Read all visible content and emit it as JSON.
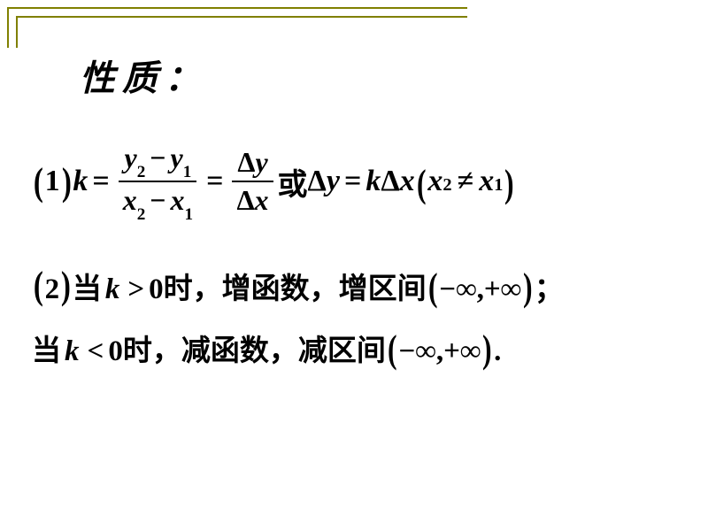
{
  "colors": {
    "border": "#808000",
    "text": "#000000",
    "background": "#ffffff"
  },
  "title": "性质：",
  "eq1": {
    "label": "1",
    "lhs": "k",
    "frac1_num_a": "y",
    "frac1_num_a_sub": "2",
    "frac1_num_b": "y",
    "frac1_num_b_sub": "1",
    "frac1_den_a": "x",
    "frac1_den_a_sub": "2",
    "frac1_den_b": "x",
    "frac1_den_b_sub": "1",
    "frac2_num": "Δ",
    "frac2_num_v": "y",
    "frac2_den": "Δ",
    "frac2_den_v": "x",
    "or": "或",
    "rhs_d": "Δ",
    "rhs_y": "y",
    "rhs_k": "k",
    "rhs_x": "x",
    "cond_x2": "x",
    "cond_s2": "2",
    "cond_x1": "x",
    "cond_s1": "1",
    "neq": "≠"
  },
  "eq2": {
    "label": "2",
    "when": "当",
    "k": "k",
    "gt": ">",
    "lt": "<",
    "zero": "0",
    "shi": "时",
    "inc": "增函数",
    "dec": "减函数",
    "inc_int": "增区间",
    "dec_int": "减区间",
    "comma": "，",
    "ninf": "−∞",
    "pinf": "+∞",
    "semicolon": "；",
    "period": "."
  },
  "typography": {
    "title_fontsize": 40,
    "body_fontsize": 34,
    "font_family_math": "Times New Roman",
    "font_family_cn": "KaiTi"
  }
}
